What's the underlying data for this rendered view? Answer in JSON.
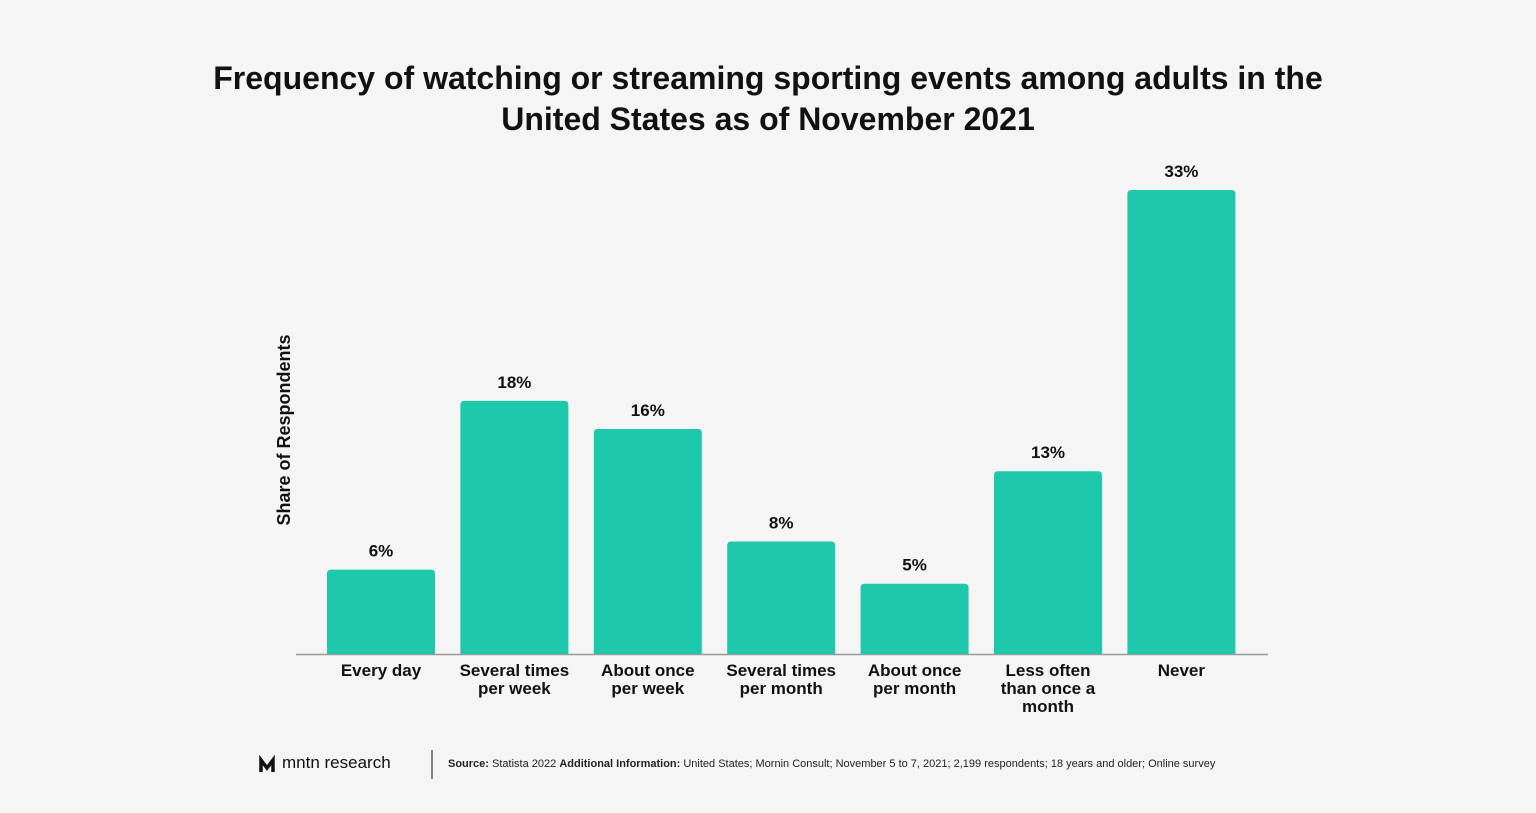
{
  "chart_data": {
    "type": "bar",
    "title": "Frequency of watching or streaming sporting events among adults in the United States as of November 2021",
    "y_label": "Share of Respondents",
    "categories": [
      "Every day",
      "Several times per week",
      "About once per week",
      "Several times per month",
      "About once per month",
      "Less often than once a month",
      "Never"
    ],
    "values": [
      6,
      18,
      16,
      8,
      5,
      13,
      33
    ],
    "value_labels": [
      "6%",
      "18%",
      "16%",
      "8%",
      "5%",
      "13%",
      "33%"
    ],
    "color": "#1dc9aa",
    "brand": "mntn research",
    "source_label": "Source:",
    "source": "Statista 2022",
    "info_label": "Additional Information:",
    "info": "United States; Mornin Consult; November 5 to 7, 2021; 2,199 respondents; 18 years and older; Online survey"
  }
}
